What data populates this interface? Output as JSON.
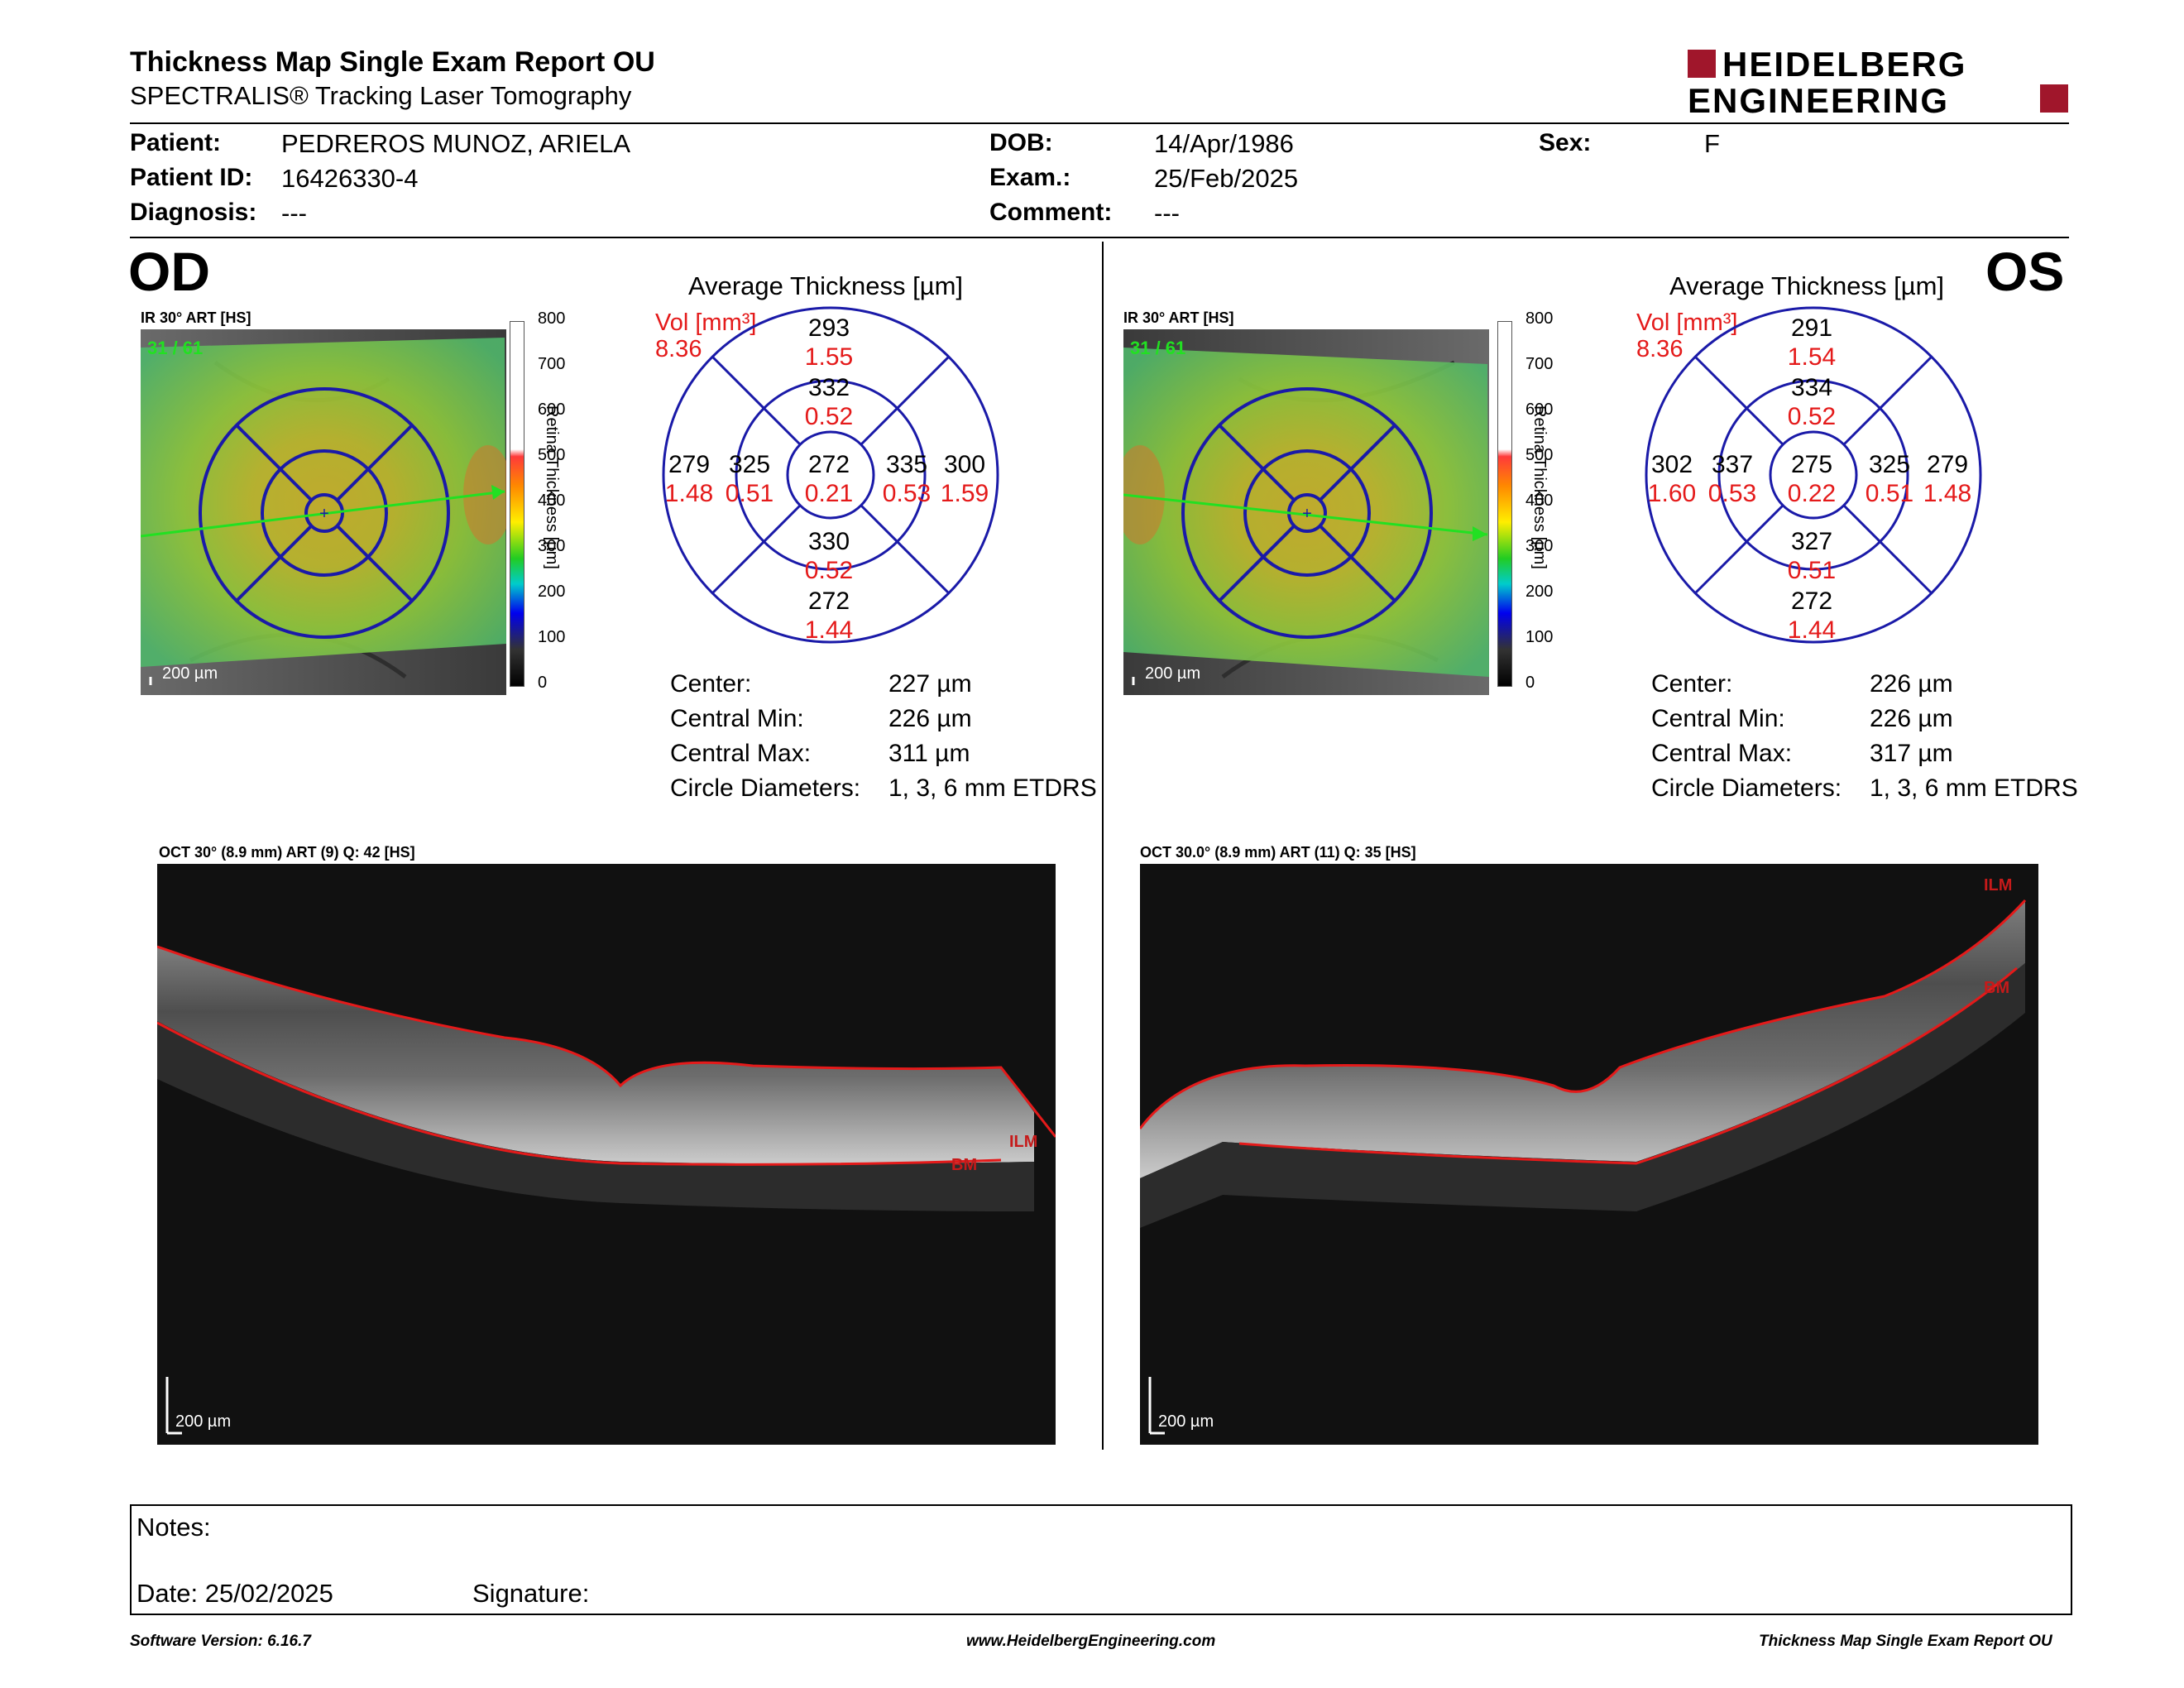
{
  "header": {
    "title": "Thickness Map Single Exam Report OU",
    "subtitle": "SPECTRALIS® Tracking Laser Tomography",
    "logo_line1": "HEIDELBERG",
    "logo_line2": "ENGINEERING"
  },
  "patient": {
    "patient_label": "Patient:",
    "patient_value": "PEDREROS MUNOZ, ARIELA",
    "id_label": "Patient ID:",
    "id_value": "16426330-4",
    "diagnosis_label": "Diagnosis:",
    "diagnosis_value": "---",
    "dob_label": "DOB:",
    "dob_value": "14/Apr/1986",
    "exam_label": "Exam.:",
    "exam_value": "25/Feb/2025",
    "comment_label": "Comment:",
    "comment_value": "---",
    "sex_label": "Sex:",
    "sex_value": "F"
  },
  "od": {
    "eye_label": "OD",
    "ir_caption": "IR 30° ART [HS]",
    "frames": "31 / 61",
    "scale": "200 µm",
    "avg_title": "Average Thickness [µm]",
    "vol_label": "Vol [mm³]",
    "vol_value": "8.36",
    "grid": {
      "outer_top": "293",
      "outer_top_v": "1.55",
      "inner_top": "332",
      "inner_top_v": "0.52",
      "outer_left": "279",
      "outer_left_v": "1.48",
      "inner_left": "325",
      "inner_left_v": "0.51",
      "center": "272",
      "center_v": "0.21",
      "inner_right": "335",
      "inner_right_v": "0.53",
      "outer_right": "300",
      "outer_right_v": "1.59",
      "inner_bottom": "330",
      "inner_bottom_v": "0.52",
      "outer_bottom": "272",
      "outer_bottom_v": "1.44"
    },
    "stats": {
      "center_label": "Center:",
      "center_value": "227 µm",
      "min_label": "Central Min:",
      "min_value": "226 µm",
      "max_label": "Central Max:",
      "max_value": "311 µm",
      "circle_label": "Circle Diameters:",
      "circle_value": "1, 3, 6 mm ETDRS"
    },
    "oct_caption": "OCT 30° (8.9 mm) ART (9) Q: 42 [HS]",
    "oct_scale": "200 µm",
    "ilm": "ILM",
    "bm": "BM"
  },
  "os": {
    "eye_label": "OS",
    "ir_caption": "IR 30° ART [HS]",
    "frames": "31 / 61",
    "scale": "200 µm",
    "avg_title": "Average Thickness [µm]",
    "vol_label": "Vol [mm³]",
    "vol_value": "8.36",
    "grid": {
      "outer_top": "291",
      "outer_top_v": "1.54",
      "inner_top": "334",
      "inner_top_v": "0.52",
      "outer_left": "302",
      "outer_left_v": "1.60",
      "inner_left": "337",
      "inner_left_v": "0.53",
      "center": "275",
      "center_v": "0.22",
      "inner_right": "325",
      "inner_right_v": "0.51",
      "outer_right": "279",
      "outer_right_v": "1.48",
      "inner_bottom": "327",
      "inner_bottom_v": "0.51",
      "outer_bottom": "272",
      "outer_bottom_v": "1.44"
    },
    "stats": {
      "center_label": "Center:",
      "center_value": "226 µm",
      "min_label": "Central Min:",
      "min_value": "226 µm",
      "max_label": "Central Max:",
      "max_value": "317 µm",
      "circle_label": "Circle Diameters:",
      "circle_value": "1, 3, 6 mm ETDRS"
    },
    "oct_caption": "OCT 30.0° (8.9 mm) ART (11) Q: 35 [HS]",
    "oct_scale": "200 µm",
    "ilm": "ILM",
    "bm": "BM"
  },
  "colorbar": {
    "ticks": [
      "800",
      "700",
      "600",
      "500",
      "400",
      "300",
      "200",
      "100",
      "0"
    ],
    "title": "Retina Thickness [µm]"
  },
  "notes": {
    "notes_label": "Notes:",
    "date_label": "Date: 25/02/2025",
    "signature_label": "Signature:"
  },
  "footer": {
    "software": "Software Version: 6.16.7",
    "website": "www.HeidelbergEngineering.com",
    "report": "Thickness Map Single Exam Report OU"
  },
  "colors": {
    "red_value": "#e41a1a",
    "grid_blue": "#1a1aa8",
    "logo_red": "#a0162b"
  }
}
